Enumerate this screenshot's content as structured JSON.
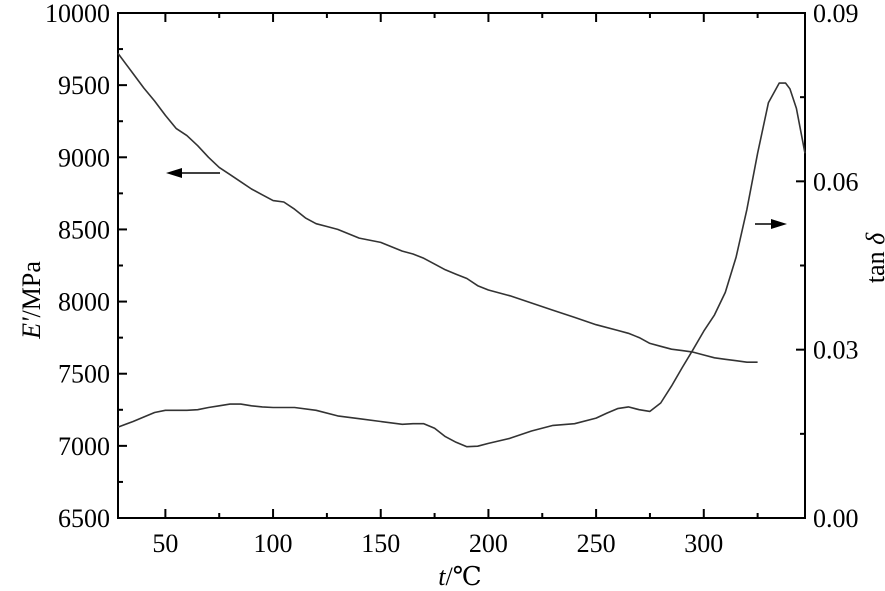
{
  "chart_data": {
    "type": "line",
    "xlabel_italic": "t",
    "xlabel_unit": "/℃",
    "ylabel_left_italic": "E'",
    "ylabel_left_unit": "/MPa",
    "ylabel_right_prefix": "tan ",
    "ylabel_right_italic": "δ",
    "xlim": [
      28,
      347
    ],
    "ylim_left": [
      6500,
      10000
    ],
    "ylim_right": [
      0.0,
      0.09
    ],
    "x_ticks": [
      50,
      100,
      150,
      200,
      250,
      300
    ],
    "x_tick_labels": [
      "50",
      "100",
      "150",
      "200",
      "250",
      "300"
    ],
    "y_left_ticks": [
      6500,
      7000,
      7500,
      8000,
      8500,
      9000,
      9500,
      10000
    ],
    "y_left_tick_labels": [
      "6500",
      "7000",
      "7500",
      "8000",
      "8500",
      "9000",
      "9500",
      "10000"
    ],
    "y_right_ticks": [
      0.0,
      0.03,
      0.06,
      0.09
    ],
    "y_right_tick_labels": [
      "0.00",
      "0.03",
      "0.06",
      "0.09"
    ],
    "grid": false,
    "series": [
      {
        "axis": "left",
        "x": [
          28,
          35,
          40,
          45,
          50,
          55,
          60,
          65,
          70,
          75,
          80,
          85,
          90,
          95,
          100,
          105,
          110,
          115,
          120,
          125,
          130,
          140,
          150,
          160,
          165,
          170,
          175,
          180,
          185,
          190,
          195,
          200,
          210,
          220,
          230,
          240,
          250,
          260,
          265,
          270,
          275,
          280,
          285,
          290,
          295,
          300,
          305,
          310,
          315,
          320,
          325
        ],
        "values": [
          9720,
          9580,
          9480,
          9390,
          9290,
          9200,
          9150,
          9080,
          9000,
          8930,
          8880,
          8830,
          8780,
          8740,
          8700,
          8690,
          8640,
          8580,
          8540,
          8520,
          8500,
          8440,
          8410,
          8350,
          8330,
          8300,
          8260,
          8220,
          8190,
          8160,
          8110,
          8080,
          8040,
          7990,
          7940,
          7890,
          7840,
          7800,
          7780,
          7750,
          7710,
          7690,
          7670,
          7660,
          7650,
          7630,
          7610,
          7600,
          7590,
          7580,
          7580
        ]
      },
      {
        "axis": "right",
        "x": [
          28,
          35,
          40,
          45,
          50,
          55,
          60,
          65,
          70,
          75,
          80,
          85,
          90,
          95,
          100,
          110,
          120,
          130,
          140,
          150,
          160,
          165,
          170,
          175,
          180,
          185,
          190,
          195,
          200,
          210,
          220,
          230,
          240,
          250,
          255,
          260,
          265,
          270,
          275,
          280,
          285,
          290,
          295,
          300,
          305,
          310,
          315,
          320,
          325,
          330,
          335,
          338,
          340,
          343,
          347
        ],
        "values": [
          0.0162,
          0.0172,
          0.018,
          0.0188,
          0.0192,
          0.0192,
          0.0192,
          0.0193,
          0.0197,
          0.02,
          0.0203,
          0.0203,
          0.02,
          0.0198,
          0.0197,
          0.0197,
          0.0192,
          0.0182,
          0.0177,
          0.0172,
          0.0167,
          0.0168,
          0.0168,
          0.016,
          0.0145,
          0.0135,
          0.0127,
          0.0128,
          0.0133,
          0.0142,
          0.0155,
          0.0165,
          0.0168,
          0.0178,
          0.0187,
          0.0195,
          0.0198,
          0.0193,
          0.019,
          0.0205,
          0.0235,
          0.0268,
          0.03,
          0.0333,
          0.0362,
          0.0402,
          0.0465,
          0.055,
          0.065,
          0.074,
          0.0775,
          0.0775,
          0.0765,
          0.073,
          0.065
        ]
      }
    ]
  }
}
